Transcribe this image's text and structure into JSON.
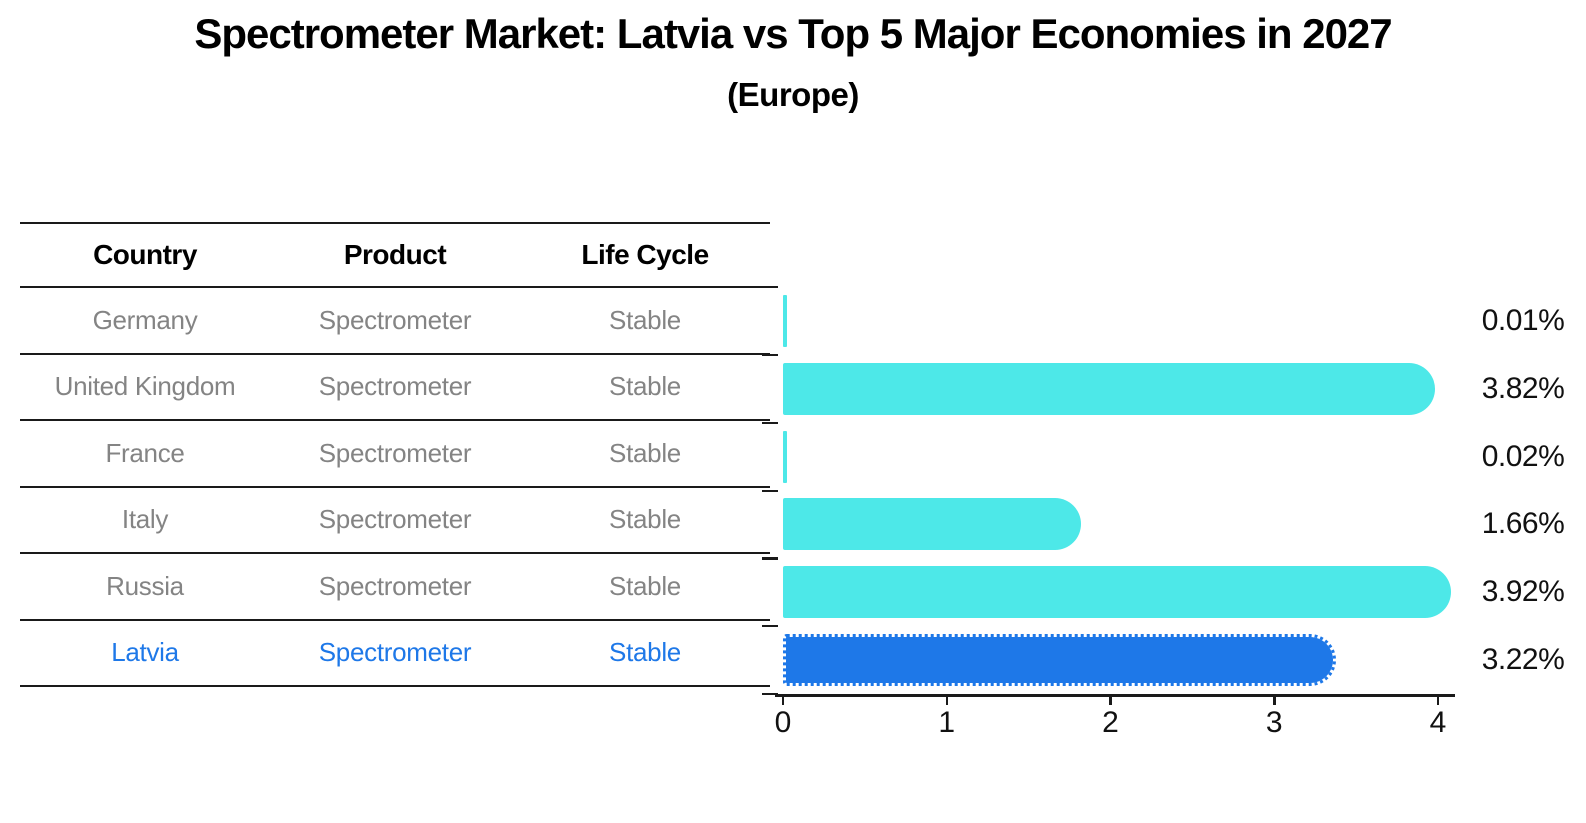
{
  "title": "Spectrometer Market: Latvia vs Top 5 Major Economies in 2027",
  "subtitle": "(Europe)",
  "table": {
    "headers": [
      "Country",
      "Product",
      "Life Cycle"
    ],
    "rows": [
      {
        "country": "Germany",
        "product": "Spectrometer",
        "life_cycle": "Stable",
        "highlight": false
      },
      {
        "country": "United Kingdom",
        "product": "Spectrometer",
        "life_cycle": "Stable",
        "highlight": false
      },
      {
        "country": "France",
        "product": "Spectrometer",
        "life_cycle": "Stable",
        "highlight": false
      },
      {
        "country": "Italy",
        "product": "Spectrometer",
        "life_cycle": "Stable",
        "highlight": false
      },
      {
        "country": "Russia",
        "product": "Spectrometer",
        "life_cycle": "Stable",
        "highlight": false
      },
      {
        "country": "Latvia",
        "product": "Spectrometer",
        "life_cycle": "Stable",
        "highlight": true
      }
    ]
  },
  "chart_data": {
    "type": "bar",
    "orientation": "horizontal",
    "title": "Spectrometer Market: Latvia vs Top 5 Major Economies in 2027 (Europe)",
    "categories": [
      "Germany",
      "United Kingdom",
      "France",
      "Italy",
      "Russia",
      "Latvia"
    ],
    "values": [
      0.01,
      3.82,
      0.02,
      1.66,
      3.92,
      3.22
    ],
    "value_labels": [
      "0.01%",
      "3.82%",
      "0.02%",
      "1.66%",
      "3.92%",
      "3.22%"
    ],
    "xlabel": "",
    "ylabel": "",
    "xlim": [
      0,
      4.1
    ],
    "xticks": [
      "0",
      "1",
      "2",
      "3",
      "4"
    ],
    "grid": false,
    "legend": "none",
    "highlight_index": 5,
    "units": "percent"
  },
  "colors": {
    "bar_default": "#4DE8E8",
    "bar_highlight": "#1E78E8",
    "row_text": "#848484",
    "header_text": "#000000",
    "axis": "#1A1A1A",
    "background": "#FFFFFF"
  }
}
